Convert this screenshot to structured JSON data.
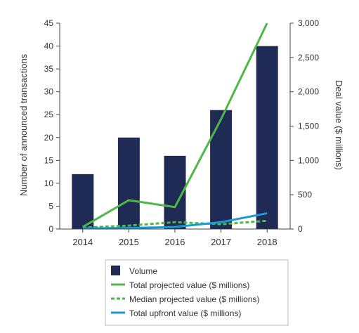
{
  "chart_data": {
    "type": "bar",
    "categories": [
      "2014",
      "2015",
      "2016",
      "2017",
      "2018"
    ],
    "ylabel": "Number of announced transactions",
    "y2label": "Deal value ($ millions)",
    "ylim": [
      0,
      45
    ],
    "y2lim": [
      0,
      3000
    ],
    "y_ticks": [
      "0",
      "5",
      "10",
      "15",
      "20",
      "25",
      "30",
      "35",
      "40",
      "45"
    ],
    "y2_ticks": [
      "0",
      "500",
      "1,000",
      "1,500",
      "2,000",
      "2,500",
      "3,000"
    ],
    "grid": false,
    "legend_position": "bottom",
    "series": [
      {
        "name": "Volume",
        "kind": "bar",
        "axis": "left",
        "color": "#1f2a55",
        "values": [
          12,
          20,
          16,
          26,
          40
        ]
      },
      {
        "name": "Total projected value ($ millions)",
        "kind": "line",
        "axis": "right",
        "color": "#4db848",
        "style": "solid",
        "values": [
          30,
          420,
          320,
          1600,
          3000
        ]
      },
      {
        "name": "Median projected value ($ millions)",
        "kind": "line",
        "axis": "right",
        "color": "#4db848",
        "style": "dashed",
        "values": [
          20,
          50,
          100,
          70,
          120
        ]
      },
      {
        "name": "Total upfront value ($ millions)",
        "kind": "line",
        "axis": "right",
        "color": "#1a9ad6",
        "style": "solid",
        "values": [
          10,
          15,
          30,
          100,
          230
        ]
      }
    ]
  }
}
